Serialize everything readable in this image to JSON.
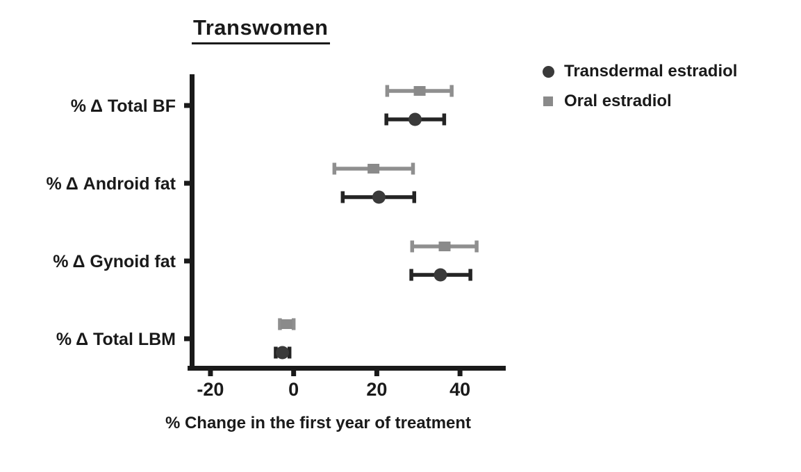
{
  "chart_data": {
    "type": "scatter",
    "subtype": "forest-plot-horizontal-error-bars",
    "title": "Transwomen",
    "xlabel": "% Change in the first year of treatment",
    "ylabel": "",
    "categories": [
      "% Δ Total BF",
      "% Δ Android fat",
      "% Δ Gynoid fat",
      "% Δ Total LBM"
    ],
    "xlim": [
      -25,
      51
    ],
    "xticks": [
      -20,
      0,
      20,
      40
    ],
    "grid": "off",
    "legend_position": "top-right",
    "series": [
      {
        "name": "Transdermal estradiol",
        "marker": "circle",
        "color": "#3a3a3a",
        "line_color": "#242424",
        "values": [
          29.2,
          20.5,
          35.3,
          -2.7
        ],
        "ci_low": [
          22.3,
          11.8,
          28.3,
          -4.3
        ],
        "ci_high": [
          36.2,
          29.0,
          42.5,
          -1.0
        ]
      },
      {
        "name": "Oral estradiol",
        "marker": "square",
        "color": "#8a8a8a",
        "line_color": "#8f8f8f",
        "values": [
          30.3,
          19.2,
          36.3,
          -1.7
        ],
        "ci_low": [
          22.5,
          9.8,
          28.5,
          -3.3
        ],
        "ci_high": [
          38.0,
          28.7,
          44.0,
          0.0
        ]
      }
    ],
    "axis_color": "#1a1a1a",
    "text_color": "#1a1a1a",
    "background_color": "#ffffff"
  }
}
